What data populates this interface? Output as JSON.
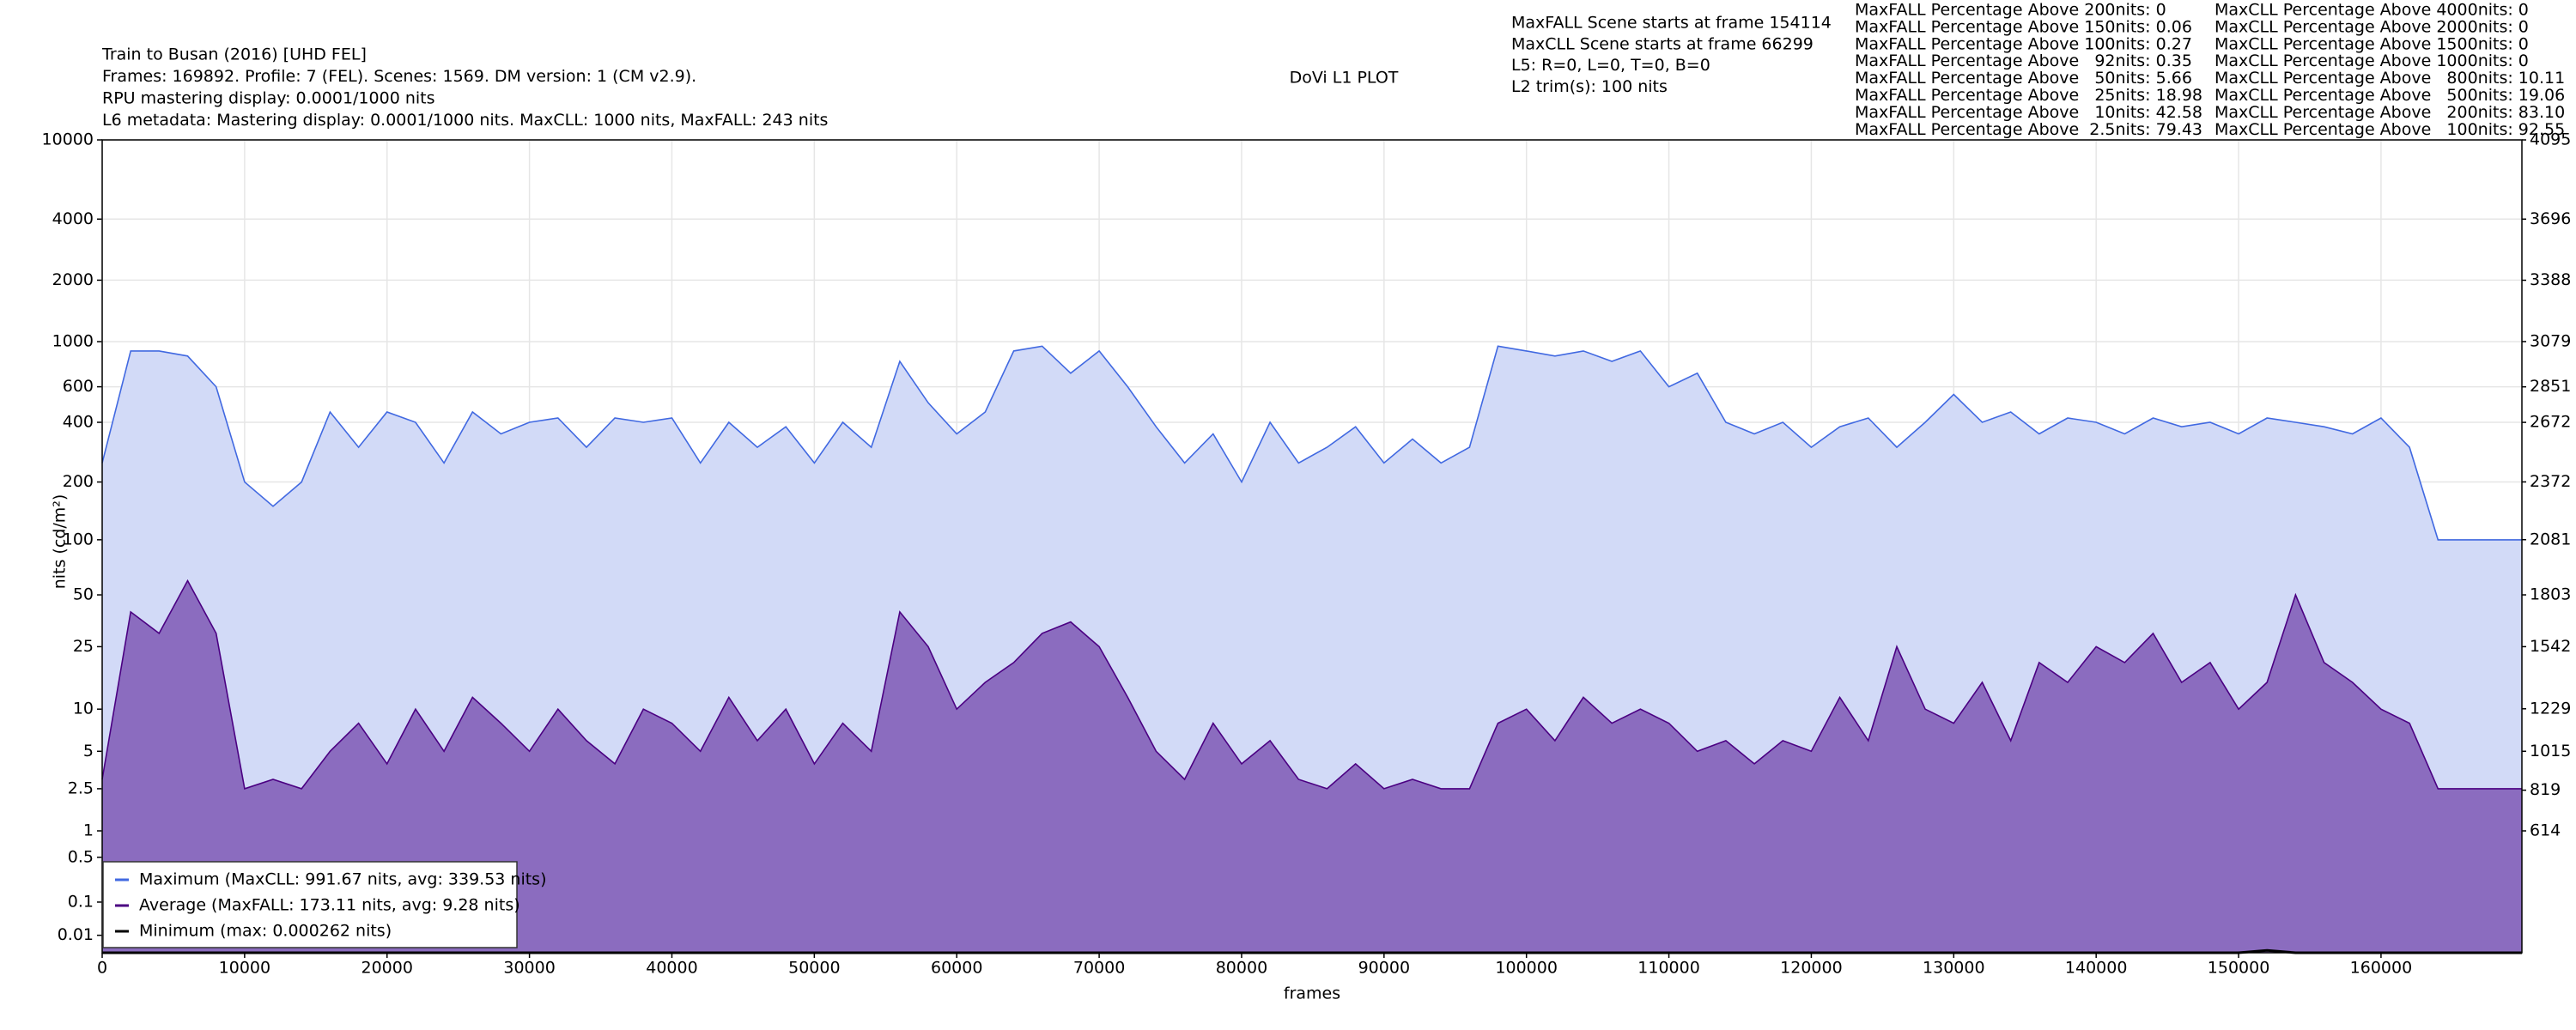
{
  "chart_data": {
    "type": "area",
    "title": "DoVi L1 PLOT",
    "x_label": "frames",
    "y_label": "nits (cd/m²)",
    "info": [
      "Train to Busan (2016) [UHD FEL]",
      "Frames: 169892. Profile: 7 (FEL). Scenes: 1569. DM version: 1 (CM v2.9).",
      "RPU mastering display: 0.0001/1000 nits",
      "L6 metadata: Mastering display: 0.0001/1000 nits. MaxCLL: 1000 nits, MaxFALL: 243 nits"
    ],
    "scene_info": [
      "MaxFALL Scene starts at frame 154114",
      "MaxCLL Scene starts at frame 66299",
      "L5: R=0, L=0, T=0, B=0",
      "L2 trim(s): 100 nits"
    ],
    "percentages_maxfall": [
      "MaxFALL Percentage Above 200nits: 0",
      "MaxFALL Percentage Above 150nits: 0.06",
      "MaxFALL Percentage Above 100nits: 0.27",
      "MaxFALL Percentage Above   92nits: 0.35",
      "MaxFALL Percentage Above   50nits: 5.66",
      "MaxFALL Percentage Above   25nits: 18.98",
      "MaxFALL Percentage Above   10nits: 42.58",
      "MaxFALL Percentage Above  2.5nits: 79.43"
    ],
    "percentages_maxcll": [
      "MaxCLL Percentage Above 4000nits: 0",
      "MaxCLL Percentage Above 2000nits: 0",
      "MaxCLL Percentage Above 1500nits: 0",
      "MaxCLL Percentage Above 1000nits: 0",
      "MaxCLL Percentage Above   800nits: 10.11",
      "MaxCLL Percentage Above   500nits: 19.06",
      "MaxCLL Percentage Above   200nits: 83.10",
      "MaxCLL Percentage Above   100nits: 92.55"
    ],
    "x": [
      0,
      2000,
      4000,
      6000,
      8000,
      10000,
      12000,
      14000,
      16000,
      18000,
      20000,
      22000,
      24000,
      26000,
      28000,
      30000,
      32000,
      34000,
      36000,
      38000,
      40000,
      42000,
      44000,
      46000,
      48000,
      50000,
      52000,
      54000,
      56000,
      58000,
      60000,
      62000,
      64000,
      66000,
      68000,
      70000,
      72000,
      74000,
      76000,
      78000,
      80000,
      82000,
      84000,
      86000,
      88000,
      90000,
      92000,
      94000,
      96000,
      98000,
      100000,
      102000,
      104000,
      106000,
      108000,
      110000,
      112000,
      114000,
      116000,
      118000,
      120000,
      122000,
      124000,
      126000,
      128000,
      130000,
      132000,
      134000,
      136000,
      138000,
      140000,
      142000,
      144000,
      146000,
      148000,
      150000,
      152000,
      154000,
      156000,
      158000,
      160000,
      162000,
      164000,
      166000,
      168000,
      169892
    ],
    "series": [
      {
        "name": "Maximum (MaxCLL: 991.67 nits, avg: 339.53 nits)",
        "color": "#4169e1",
        "fill": "#d2daf7",
        "values": [
          250,
          900,
          900,
          850,
          600,
          200,
          150,
          200,
          450,
          300,
          450,
          400,
          250,
          450,
          350,
          400,
          420,
          300,
          420,
          400,
          420,
          250,
          400,
          300,
          380,
          250,
          400,
          300,
          800,
          500,
          350,
          450,
          900,
          950,
          700,
          900,
          600,
          380,
          250,
          350,
          200,
          400,
          250,
          300,
          380,
          250,
          330,
          250,
          300,
          950,
          900,
          850,
          900,
          800,
          900,
          600,
          700,
          400,
          350,
          400,
          300,
          380,
          420,
          300,
          400,
          550,
          400,
          450,
          350,
          420,
          400,
          350,
          420,
          380,
          400,
          350,
          420,
          400,
          380,
          350,
          420,
          300,
          100,
          100,
          100,
          100
        ]
      },
      {
        "name": "Average (MaxFALL: 173.11 nits, avg: 9.28 nits)",
        "color": "#4b0082",
        "fill": "#8b6cbf",
        "values": [
          3,
          40,
          30,
          60,
          30,
          2.5,
          3,
          2.5,
          5,
          8,
          4,
          10,
          5,
          12,
          8,
          5,
          10,
          6,
          4,
          10,
          8,
          5,
          12,
          6,
          10,
          4,
          8,
          5,
          40,
          25,
          10,
          15,
          20,
          30,
          35,
          25,
          12,
          5,
          3,
          8,
          4,
          6,
          3,
          2.5,
          4,
          2.5,
          3,
          2.5,
          2.5,
          8,
          10,
          6,
          12,
          8,
          10,
          8,
          5,
          6,
          4,
          6,
          5,
          12,
          6,
          25,
          10,
          8,
          15,
          6,
          20,
          15,
          25,
          20,
          30,
          15,
          20,
          10,
          15,
          50,
          20,
          15,
          10,
          8,
          2.5,
          2.5,
          2.5,
          2.5
        ]
      },
      {
        "name": "Minimum (max: 0.000262 nits)",
        "color": "#000000",
        "values": [
          0,
          0,
          0,
          0,
          0,
          0,
          0,
          0,
          0,
          0,
          0,
          0,
          0,
          0,
          0,
          0,
          0,
          0,
          0,
          0,
          0,
          0,
          0,
          0,
          0,
          0,
          0,
          0,
          0,
          0,
          0,
          0,
          0,
          0,
          0,
          0,
          0,
          0,
          0,
          0,
          0,
          0,
          0,
          0,
          0,
          0,
          0,
          0,
          0,
          0,
          0,
          0,
          0,
          0,
          0,
          0,
          0,
          0,
          0,
          0,
          0,
          0,
          0,
          0,
          0,
          0,
          0,
          0,
          0,
          0,
          0,
          0,
          0,
          0,
          0,
          0,
          0.000262,
          0,
          0,
          0,
          0,
          0,
          0,
          0,
          0,
          0
        ]
      }
    ],
    "xlim": [
      0,
      169892
    ],
    "xticks": [
      0,
      10000,
      20000,
      30000,
      40000,
      50000,
      60000,
      70000,
      80000,
      90000,
      100000,
      110000,
      120000,
      130000,
      140000,
      150000,
      160000
    ],
    "ylim": [
      0,
      10000
    ],
    "yticks": [
      0.01,
      0.1,
      0.5,
      1,
      2.5,
      5,
      10,
      25,
      50,
      100,
      200,
      400,
      600,
      1000,
      2000,
      4000,
      10000
    ],
    "yscale": "pq",
    "y2lim": [
      0,
      4095
    ],
    "y2ticks": [
      614,
      819,
      1015,
      1229,
      1542,
      1803,
      2081,
      2372,
      2672,
      2851,
      3079,
      3388,
      3696,
      4095
    ],
    "grid": true,
    "legend": "lower left"
  }
}
